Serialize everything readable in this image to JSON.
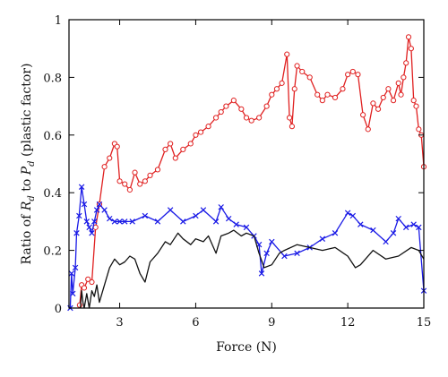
{
  "chart_data": {
    "type": "line",
    "xlabel": "Force (N)",
    "ylabel_parts": [
      "Ratio of ",
      "R",
      "d",
      " to ",
      "P",
      "d",
      " (plastic factor)"
    ],
    "xlim": [
      1.0,
      15.0
    ],
    "ylim": [
      0,
      1.0
    ],
    "x_ticks": [
      3,
      6,
      9,
      12,
      15
    ],
    "x_tick_labels": [
      "3",
      "6",
      "9",
      "12",
      "15"
    ],
    "y_ticks": [
      0,
      0.2,
      0.4,
      0.6,
      0.8,
      1.0
    ],
    "y_tick_labels": [
      "0",
      "0.2",
      "0.4",
      "0.6",
      "0.8",
      "1"
    ],
    "grid": false,
    "series": [
      {
        "color": "#e02020",
        "marker": "circle",
        "x": [
          1.42,
          1.5,
          1.6,
          1.75,
          1.9,
          2.05,
          2.2,
          2.4,
          2.6,
          2.8,
          2.9,
          3.0,
          3.2,
          3.4,
          3.6,
          3.8,
          4.0,
          4.2,
          4.5,
          4.8,
          5.0,
          5.2,
          5.5,
          5.8,
          6.0,
          6.2,
          6.5,
          6.8,
          7.0,
          7.2,
          7.5,
          7.8,
          8.0,
          8.2,
          8.5,
          8.8,
          9.0,
          9.2,
          9.4,
          9.6,
          9.7,
          9.8,
          9.9,
          10.0,
          10.2,
          10.5,
          10.8,
          11.0,
          11.2,
          11.5,
          11.8,
          12.0,
          12.2,
          12.4,
          12.6,
          12.8,
          13.0,
          13.2,
          13.4,
          13.6,
          13.8,
          14.0,
          14.1,
          14.2,
          14.3,
          14.4,
          14.5,
          14.6,
          14.7,
          14.8,
          14.9,
          15.0
        ],
        "y": [
          0.01,
          0.08,
          0.07,
          0.1,
          0.09,
          0.28,
          0.36,
          0.49,
          0.52,
          0.57,
          0.56,
          0.44,
          0.43,
          0.41,
          0.47,
          0.43,
          0.44,
          0.46,
          0.48,
          0.55,
          0.57,
          0.52,
          0.55,
          0.57,
          0.6,
          0.61,
          0.63,
          0.66,
          0.68,
          0.7,
          0.72,
          0.69,
          0.66,
          0.65,
          0.66,
          0.7,
          0.74,
          0.76,
          0.78,
          0.88,
          0.66,
          0.63,
          0.76,
          0.84,
          0.82,
          0.8,
          0.74,
          0.72,
          0.74,
          0.73,
          0.76,
          0.81,
          0.82,
          0.81,
          0.67,
          0.62,
          0.71,
          0.69,
          0.73,
          0.76,
          0.72,
          0.78,
          0.74,
          0.8,
          0.85,
          0.94,
          0.9,
          0.72,
          0.7,
          0.62,
          0.6,
          0.49
        ]
      },
      {
        "color": "#1a1ae6",
        "marker": "x",
        "x": [
          1.05,
          1.1,
          1.15,
          1.25,
          1.3,
          1.4,
          1.5,
          1.6,
          1.7,
          1.8,
          1.9,
          2.0,
          2.1,
          2.2,
          2.4,
          2.6,
          2.8,
          3.0,
          3.2,
          3.5,
          4.0,
          4.5,
          5.0,
          5.5,
          6.0,
          6.3,
          6.8,
          7.0,
          7.3,
          7.6,
          8.0,
          8.3,
          8.5,
          8.6,
          8.8,
          9.0,
          9.5,
          10.0,
          10.5,
          11.0,
          11.5,
          12.0,
          12.2,
          12.5,
          13.0,
          13.5,
          13.8,
          14.0,
          14.3,
          14.6,
          14.8,
          15.0
        ],
        "y": [
          0.0,
          0.12,
          0.05,
          0.14,
          0.26,
          0.32,
          0.42,
          0.36,
          0.3,
          0.28,
          0.26,
          0.3,
          0.34,
          0.36,
          0.34,
          0.31,
          0.3,
          0.3,
          0.3,
          0.3,
          0.32,
          0.3,
          0.34,
          0.3,
          0.32,
          0.34,
          0.3,
          0.35,
          0.31,
          0.29,
          0.28,
          0.25,
          0.22,
          0.12,
          0.19,
          0.23,
          0.18,
          0.19,
          0.21,
          0.24,
          0.26,
          0.33,
          0.32,
          0.29,
          0.27,
          0.23,
          0.26,
          0.31,
          0.28,
          0.29,
          0.28,
          0.06
        ]
      },
      {
        "color": "#111111",
        "marker": "none",
        "x": [
          1.45,
          1.5,
          1.55,
          1.6,
          1.7,
          1.8,
          1.9,
          2.0,
          2.1,
          2.2,
          2.4,
          2.6,
          2.8,
          3.0,
          3.2,
          3.4,
          3.6,
          3.8,
          4.0,
          4.2,
          4.5,
          4.8,
          5.0,
          5.3,
          5.5,
          5.8,
          6.0,
          6.3,
          6.5,
          6.8,
          7.0,
          7.3,
          7.5,
          7.8,
          8.0,
          8.3,
          8.5,
          8.7,
          9.0,
          9.3,
          9.5,
          10.0,
          10.5,
          11.0,
          11.5,
          12.0,
          12.3,
          12.5,
          13.0,
          13.5,
          14.0,
          14.5,
          14.8,
          15.0
        ],
        "y": [
          0.0,
          0.06,
          0.02,
          0.0,
          0.05,
          0.0,
          0.06,
          0.04,
          0.08,
          0.02,
          0.08,
          0.14,
          0.17,
          0.15,
          0.16,
          0.18,
          0.17,
          0.12,
          0.09,
          0.16,
          0.19,
          0.23,
          0.22,
          0.26,
          0.24,
          0.22,
          0.24,
          0.23,
          0.25,
          0.19,
          0.25,
          0.26,
          0.27,
          0.25,
          0.26,
          0.25,
          0.19,
          0.14,
          0.15,
          0.19,
          0.2,
          0.22,
          0.21,
          0.2,
          0.21,
          0.18,
          0.14,
          0.15,
          0.2,
          0.17,
          0.18,
          0.21,
          0.2,
          0.17
        ]
      }
    ]
  }
}
